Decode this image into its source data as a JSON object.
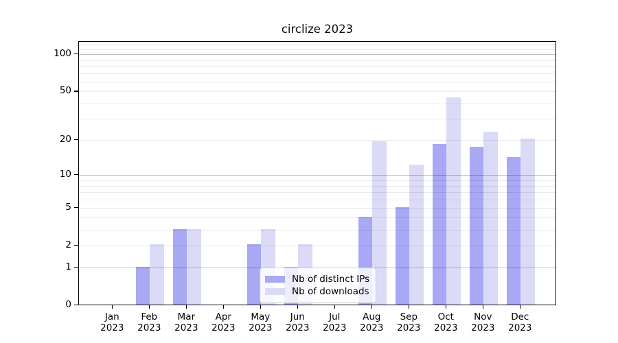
{
  "figure": {
    "title": "circlize 2023"
  },
  "chart_data": {
    "type": "bar",
    "title": "circlize 2023",
    "categories": [
      "Jan 2023",
      "Feb 2023",
      "Mar 2023",
      "Apr 2023",
      "May 2023",
      "Jun 2023",
      "Jul 2023",
      "Aug 2023",
      "Sep 2023",
      "Oct 2023",
      "Nov 2023",
      "Dec 2023"
    ],
    "x_tick_month_labels": [
      "Jan",
      "Feb",
      "Mar",
      "Apr",
      "May",
      "Jun",
      "Jul",
      "Aug",
      "Sep",
      "Oct",
      "Nov",
      "Dec"
    ],
    "x_tick_year_label": "2023",
    "series": [
      {
        "name": "Nb of distinct IPs",
        "color": "#a8a8f5",
        "values": [
          0,
          1,
          3,
          0,
          2,
          1,
          0,
          4,
          5,
          18,
          17,
          14
        ]
      },
      {
        "name": "Nb of downloads",
        "color": "#dbdbf8",
        "values": [
          0,
          2,
          3,
          0,
          3,
          2,
          0,
          19,
          12,
          44,
          23,
          20
        ]
      }
    ],
    "xlabel": "",
    "ylabel": "",
    "yscale": "log1p",
    "ylim": [
      0,
      127
    ],
    "ytick_values": [
      0,
      1,
      2,
      5,
      10,
      20,
      50,
      100
    ],
    "ytick_labels": [
      "0",
      "1",
      "2",
      "5",
      "10",
      "20",
      "50",
      "100"
    ],
    "major_gridlines": [
      1,
      10,
      100
    ],
    "minor_gridlines": [
      2,
      3,
      4,
      5,
      6,
      7,
      8,
      9,
      20,
      30,
      40,
      50,
      60,
      70,
      80,
      90,
      110,
      120
    ],
    "grid": true,
    "legend_position": "lower center",
    "spine_color": "#000000",
    "major_grid_color": "#c7c7c7",
    "minor_grid_color": "#ebebeb"
  }
}
